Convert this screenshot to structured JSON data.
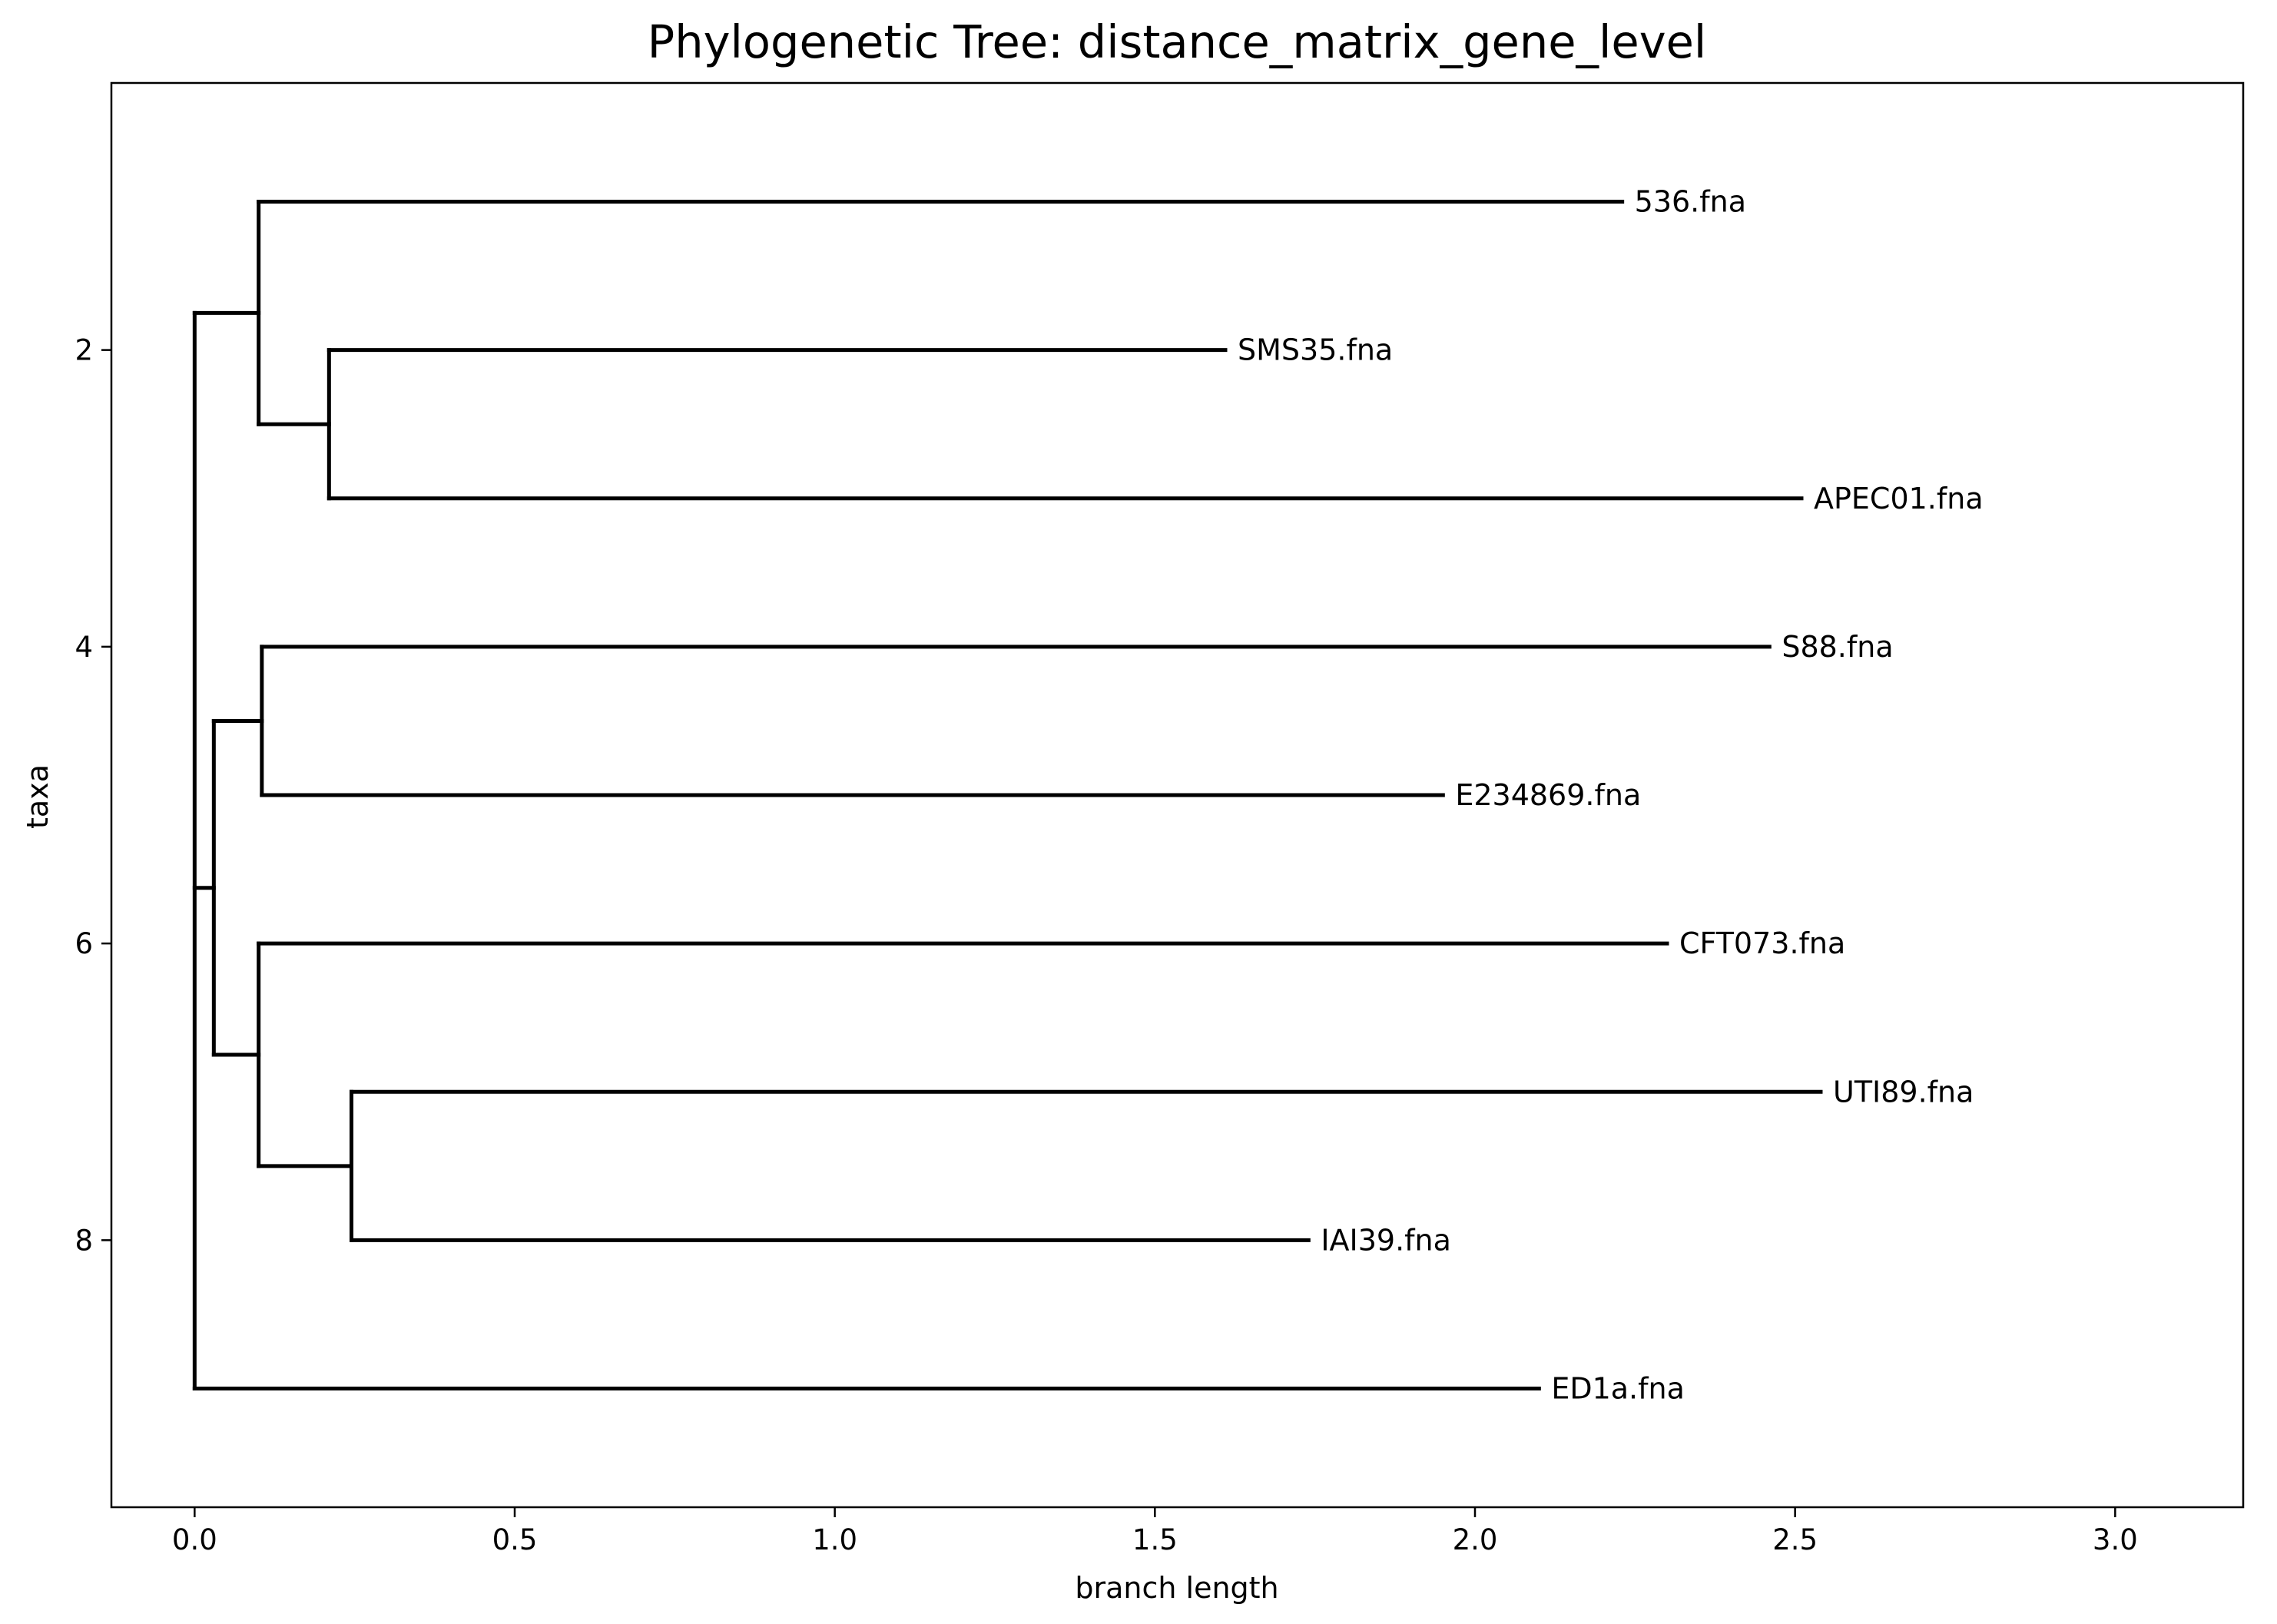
{
  "chart_data": {
    "type": "dendrogram",
    "title": "Phylogenetic Tree: distance_matrix_gene_level",
    "xlabel": "branch length",
    "ylabel": "taxa",
    "xlim": [
      -0.13,
      3.2
    ],
    "ylim": [
      0.2,
      9.8
    ],
    "y_inverted": true,
    "xticks": [
      0.0,
      0.5,
      1.0,
      1.5,
      2.0,
      2.5,
      3.0
    ],
    "xtick_labels": [
      "0.0",
      "0.5",
      "1.0",
      "1.5",
      "2.0",
      "2.5",
      "3.0"
    ],
    "yticks": [
      2,
      4,
      6,
      8
    ],
    "ytick_labels": [
      "2",
      "4",
      "6",
      "8"
    ],
    "grid": false,
    "leaves": [
      {
        "name": "536.fna",
        "x": 2.23,
        "y": 1
      },
      {
        "name": "SMS35.fna",
        "x": 1.61,
        "y": 2
      },
      {
        "name": "APEC01.fna",
        "x": 2.51,
        "y": 3
      },
      {
        "name": "S88.fna",
        "x": 2.46,
        "y": 4
      },
      {
        "name": "E234869.fna",
        "x": 1.95,
        "y": 5
      },
      {
        "name": "CFT073.fna",
        "x": 2.3,
        "y": 6
      },
      {
        "name": "UTI89.fna",
        "x": 2.54,
        "y": 7
      },
      {
        "name": "IAI39.fna",
        "x": 1.74,
        "y": 8
      },
      {
        "name": "ED1a.fna",
        "x": 2.1,
        "y": 9
      }
    ],
    "clades": [
      {
        "x": 0.21,
        "y": 2.5,
        "children": [
          {
            "y": 2
          },
          {
            "y": 3
          }
        ]
      },
      {
        "x": 0.1,
        "y": 1.75,
        "children": [
          {
            "y": 1
          },
          {
            "y": 2.5
          }
        ]
      },
      {
        "x": 0.105,
        "y": 4.5,
        "children": [
          {
            "y": 4
          },
          {
            "y": 5
          }
        ]
      },
      {
        "x": 0.245,
        "y": 7.5,
        "children": [
          {
            "y": 7
          },
          {
            "y": 8
          }
        ]
      },
      {
        "x": 0.1,
        "y": 6.75,
        "children": [
          {
            "y": 6
          },
          {
            "y": 7.5
          }
        ]
      },
      {
        "x": 0.03,
        "y": 5.625,
        "children": [
          {
            "y": 4.5
          },
          {
            "y": 6.75
          }
        ]
      },
      {
        "x": 0.0,
        "y": 1.75,
        "children": [
          {
            "y": 1.75
          },
          {
            "y": 5.625
          },
          {
            "y": 9
          }
        ]
      }
    ],
    "edges": [
      {
        "from_x": 0.1,
        "to_x": 2.23,
        "y": 1
      },
      {
        "from_x": 0.21,
        "to_x": 1.61,
        "y": 2
      },
      {
        "from_x": 0.21,
        "to_x": 2.51,
        "y": 3
      },
      {
        "from_x": 0.1,
        "to_x": 0.21,
        "y": 2.5
      },
      {
        "from_x": 0.0,
        "to_x": 0.1,
        "y": 1.75
      },
      {
        "from_x": 0.105,
        "to_x": 2.46,
        "y": 4
      },
      {
        "from_x": 0.105,
        "to_x": 1.95,
        "y": 5
      },
      {
        "from_x": 0.03,
        "to_x": 0.105,
        "y": 4.5
      },
      {
        "from_x": 0.1,
        "to_x": 2.3,
        "y": 6
      },
      {
        "from_x": 0.245,
        "to_x": 2.54,
        "y": 7
      },
      {
        "from_x": 0.245,
        "to_x": 1.74,
        "y": 8
      },
      {
        "from_x": 0.1,
        "to_x": 0.245,
        "y": 7.5
      },
      {
        "from_x": 0.03,
        "to_x": 0.1,
        "y": 6.75
      },
      {
        "from_x": 0.0,
        "to_x": 0.03,
        "y": 5.625
      },
      {
        "from_x": 0.0,
        "to_x": 2.1,
        "y": 9
      }
    ]
  }
}
